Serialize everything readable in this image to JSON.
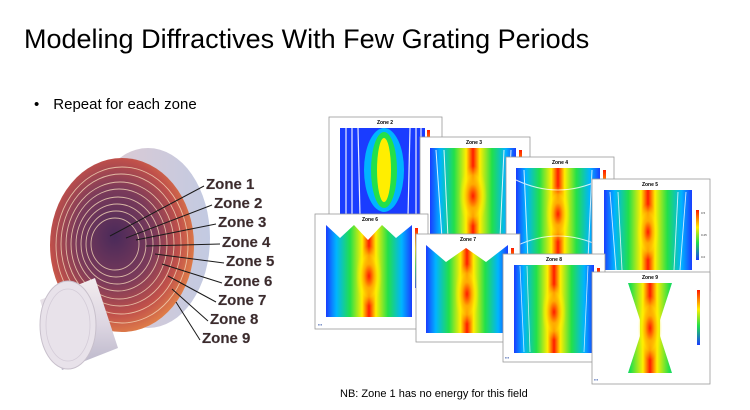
{
  "title": "Modeling Diffractives With Few Grating Periods",
  "bullet": "Repeat for each zone",
  "zones": [
    "Zone 1",
    "Zone 2",
    "Zone 3",
    "Zone 4",
    "Zone 5",
    "Zone 6",
    "Zone 7",
    "Zone 8",
    "Zone 9"
  ],
  "panels": [
    "Zone 2",
    "Zone 3",
    "Zone 4",
    "Zone 5",
    "Zone 6",
    "Zone 7",
    "Zone 8",
    "Zone 9"
  ],
  "footnote": "NB: Zone 1 has no energy for this field",
  "colors": {
    "hot": "#ff1a00",
    "warm": "#ffee00",
    "mid": "#22e04a",
    "cool": "#00b4ff",
    "cold": "#1a3cff"
  }
}
